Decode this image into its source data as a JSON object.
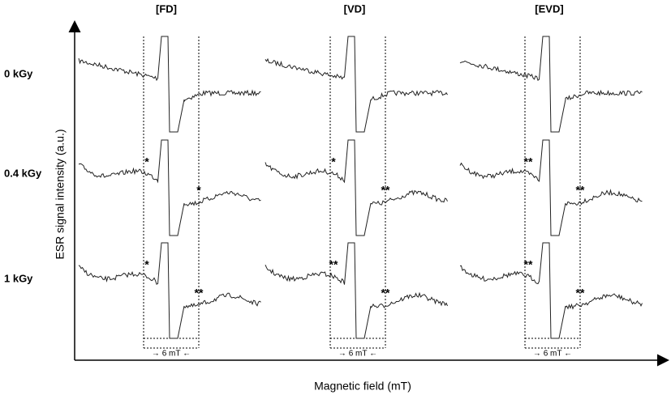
{
  "columns": [
    "[FD]",
    "[VD]",
    "[EVD]"
  ],
  "rows": [
    "0 kGy",
    "0.4 kGy",
    "1 kGy"
  ],
  "y_axis_label": "ESR signal intensity (a.u.)",
  "x_axis_label": "Magnetic field (mT)",
  "width_labels": [
    "→ 6 mT ←",
    "→ 6 mT ←",
    "→ 6 mT ←"
  ],
  "markers": [
    [
      {
        "left": null,
        "right": null
      },
      {
        "left": null,
        "right": null
      },
      {
        "left": null,
        "right": null
      }
    ],
    [
      {
        "left": "*",
        "right": "*"
      },
      {
        "left": "*",
        "right": "**"
      },
      {
        "left": "**",
        "right": "**"
      }
    ],
    [
      {
        "left": "*",
        "right": "**"
      },
      {
        "left": "**",
        "right": "**"
      },
      {
        "left": "**",
        "right": "**"
      }
    ]
  ]
}
